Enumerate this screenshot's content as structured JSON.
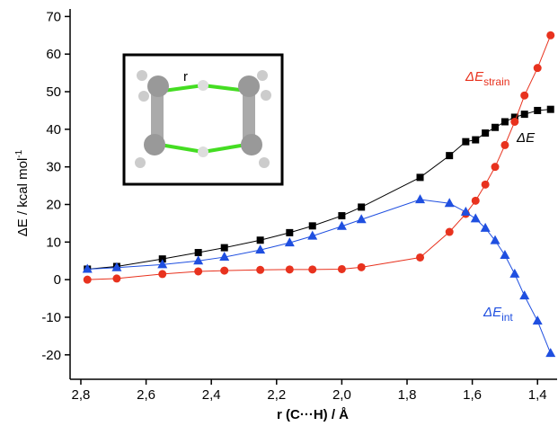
{
  "chart_data": {
    "type": "line",
    "xlabel": "r (C···H) / Å",
    "ylabel": "ΔE / kcal mol",
    "ylabel_sup": "-1",
    "inset_label": "r",
    "x": [
      2.78,
      2.69,
      2.55,
      2.44,
      2.36,
      2.25,
      2.16,
      2.09,
      2.0,
      1.94,
      1.76,
      1.67,
      1.62,
      1.59,
      1.56,
      1.53,
      1.5,
      1.47,
      1.44,
      1.4,
      1.36
    ],
    "series": [
      {
        "name": "ΔE",
        "color": "#000000",
        "marker": "square",
        "values": [
          2.8,
          3.5,
          5.5,
          7.2,
          8.5,
          10.5,
          12.5,
          14.3,
          17,
          19.3,
          27.2,
          33,
          36.7,
          37.2,
          39,
          40.5,
          42,
          43.2,
          44,
          45,
          45.3
        ]
      },
      {
        "name": "ΔE",
        "subscript": "strain",
        "color": "#e8321e",
        "marker": "circle",
        "values": [
          0,
          0.3,
          1.5,
          2.2,
          2.4,
          2.6,
          2.7,
          2.7,
          2.8,
          3.3,
          5.9,
          12.7,
          17.5,
          21,
          25.3,
          30,
          35.8,
          42,
          49,
          56.3,
          65
        ]
      },
      {
        "name": "ΔE",
        "subscript": "int",
        "color": "#1f4fe0",
        "marker": "triangle",
        "values": [
          2.8,
          3.2,
          4.0,
          5.0,
          6.0,
          7.9,
          9.8,
          11.6,
          14.2,
          16,
          21.3,
          20.3,
          18,
          16.2,
          13.7,
          10.4,
          6.5,
          1.5,
          -4.3,
          -11,
          -19.6
        ]
      }
    ],
    "xlim": [
      2.833,
      1.34
    ],
    "ylim": [
      -26.5,
      72
    ],
    "xticks": [
      {
        "value": 2.8,
        "label": "2,8"
      },
      {
        "value": 2.6,
        "label": "2,6"
      },
      {
        "value": 2.4,
        "label": "2,4"
      },
      {
        "value": 2.2,
        "label": "2,2"
      },
      {
        "value": 2.0,
        "label": "2,0"
      },
      {
        "value": 1.8,
        "label": "1,8"
      },
      {
        "value": 1.6,
        "label": "1,6"
      },
      {
        "value": 1.4,
        "label": "1,4"
      }
    ],
    "yticks": [
      -20,
      -10,
      0,
      10,
      20,
      30,
      40,
      50,
      60,
      70
    ]
  }
}
